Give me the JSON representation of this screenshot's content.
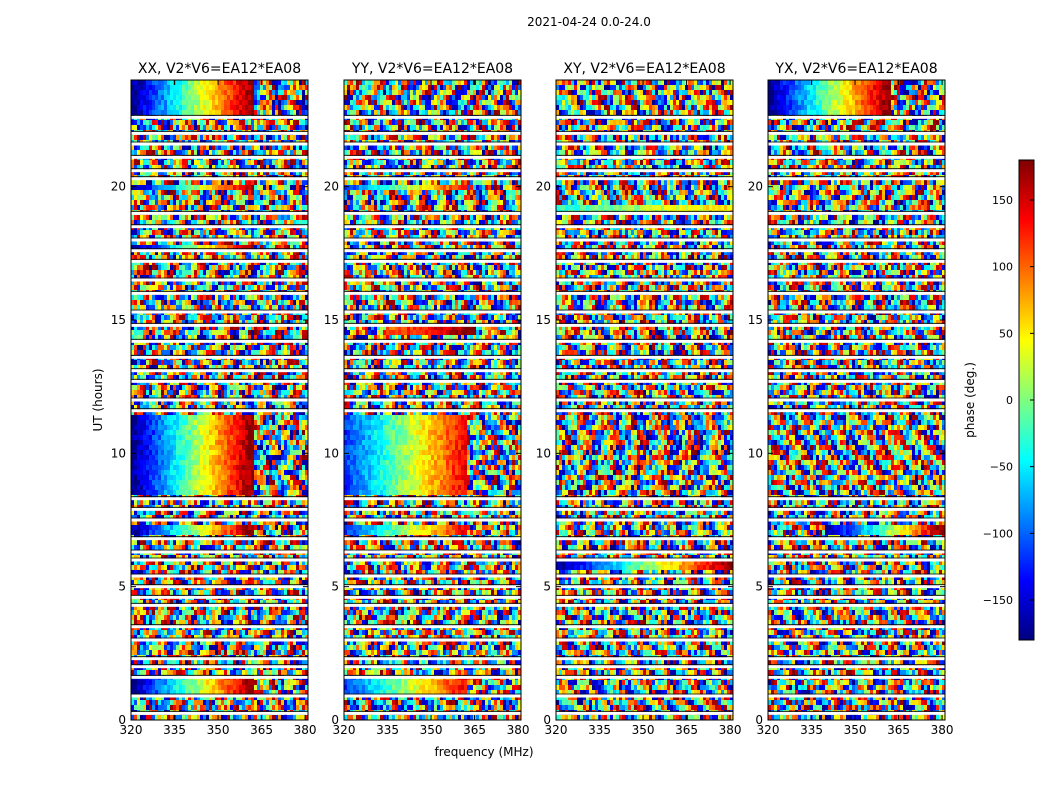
{
  "figure": {
    "suptitle": "2021-04-24 0.0-24.0",
    "xlabel": "frequency (MHz)",
    "ylabel": "UT (hours)"
  },
  "colorbar": {
    "label": "phase (deg.)",
    "range": [
      -180,
      180
    ],
    "ticks": [
      150,
      100,
      50,
      0,
      -50,
      -100,
      -150
    ],
    "tick_labels": [
      "150",
      "100",
      "50",
      "0",
      "−50",
      "−100",
      "−150"
    ],
    "colormap": "jet"
  },
  "chart_data": [
    {
      "type": "heatmap",
      "title": "XX, V2*V6=EA12*EA08",
      "x_range": [
        320,
        381
      ],
      "y_range": [
        0,
        24
      ],
      "xticks": [
        320,
        335,
        350,
        365,
        380
      ],
      "yticks": [
        0,
        5,
        10,
        15,
        20
      ],
      "value_range": [
        -180,
        180
      ],
      "coherent_features": [
        {
          "ut_range": [
            8.5,
            11.5
          ],
          "freq_range": [
            320,
            362
          ],
          "phase_range": [
            -180,
            180
          ],
          "description": "smooth phase gradient"
        },
        {
          "ut_range": [
            0.9,
            1.6
          ],
          "freq_range": [
            320,
            362
          ],
          "phase_range": [
            -180,
            180
          ]
        },
        {
          "ut_range": [
            6.9,
            7.4
          ],
          "freq_range": [
            320,
            362
          ],
          "phase_range": [
            -180,
            180
          ]
        },
        {
          "ut_range": [
            19.8,
            20.1
          ],
          "freq_range": [
            320,
            362
          ],
          "phase_range": [
            -180,
            180
          ]
        },
        {
          "ut_range": [
            17.6,
            17.9
          ],
          "freq_range": [
            320,
            362
          ],
          "phase_range": [
            -180,
            180
          ]
        },
        {
          "ut_range": [
            22.6,
            24.0
          ],
          "freq_range": [
            320,
            362
          ],
          "phase_range": [
            -180,
            180
          ]
        }
      ]
    },
    {
      "type": "heatmap",
      "title": "YY, V2*V6=EA12*EA08",
      "x_range": [
        320,
        381
      ],
      "y_range": [
        0,
        24
      ],
      "xticks": [
        320,
        335,
        350,
        365,
        380
      ],
      "yticks": [
        0,
        5,
        10,
        15,
        20
      ],
      "value_range": [
        -180,
        180
      ],
      "coherent_features": [
        {
          "ut_range": [
            8.5,
            11.5
          ],
          "freq_range": [
            320,
            362
          ],
          "phase_range": [
            -120,
            140
          ],
          "description": "smooth phase gradient"
        },
        {
          "ut_range": [
            0.9,
            1.6
          ],
          "freq_range": [
            320,
            362
          ],
          "phase_range": [
            -120,
            140
          ]
        },
        {
          "ut_range": [
            6.9,
            7.4
          ],
          "freq_range": [
            320,
            362
          ],
          "phase_range": [
            -120,
            140
          ]
        },
        {
          "ut_range": [
            19.8,
            20.1
          ],
          "freq_range": [
            320,
            362
          ],
          "phase_range": [
            -120,
            140
          ]
        },
        {
          "ut_range": [
            14.5,
            14.8
          ],
          "freq_range": [
            335,
            365
          ],
          "phase_range": [
            100,
            180
          ]
        }
      ]
    },
    {
      "type": "heatmap",
      "title": "XY, V2*V6=EA12*EA08",
      "x_range": [
        320,
        381
      ],
      "y_range": [
        0,
        24
      ],
      "xticks": [
        320,
        335,
        350,
        365,
        380
      ],
      "yticks": [
        0,
        5,
        10,
        15,
        20
      ],
      "value_range": [
        -180,
        180
      ],
      "coherent_features": [
        {
          "ut_range": [
            19.0,
            19.4
          ],
          "freq_range": [
            320,
            381
          ],
          "phase_range": [
            -30,
            60
          ]
        },
        {
          "ut_range": [
            5.7,
            6.0
          ],
          "freq_range": [
            320,
            381
          ],
          "phase_range": [
            -180,
            180
          ]
        }
      ]
    },
    {
      "type": "heatmap",
      "title": "YX, V2*V6=EA12*EA08",
      "x_range": [
        320,
        381
      ],
      "y_range": [
        0,
        24
      ],
      "xticks": [
        320,
        335,
        350,
        365,
        380
      ],
      "yticks": [
        0,
        5,
        10,
        15,
        20
      ],
      "value_range": [
        -180,
        180
      ],
      "coherent_features": [
        {
          "ut_range": [
            22.6,
            24.0
          ],
          "freq_range": [
            320,
            362
          ],
          "phase_range": [
            -180,
            180
          ]
        },
        {
          "ut_range": [
            7.0,
            7.3
          ],
          "freq_range": [
            340,
            381
          ],
          "phase_range": [
            -180,
            180
          ]
        }
      ]
    }
  ],
  "flagged_gaps_ut": [
    0.25,
    0.9,
    1.6,
    2.0,
    2.3,
    3.0,
    3.5,
    4.3,
    4.6,
    5.0,
    5.4,
    6.0,
    6.3,
    6.8,
    7.5,
    7.9,
    8.3,
    11.6,
    12.0,
    12.7,
    13.1,
    13.6,
    14.2,
    14.8,
    15.3,
    16.0,
    16.5,
    17.2,
    17.6,
    18.0,
    18.5,
    19.0,
    20.3,
    20.6,
    21.1,
    21.6,
    22.0,
    22.6
  ]
}
